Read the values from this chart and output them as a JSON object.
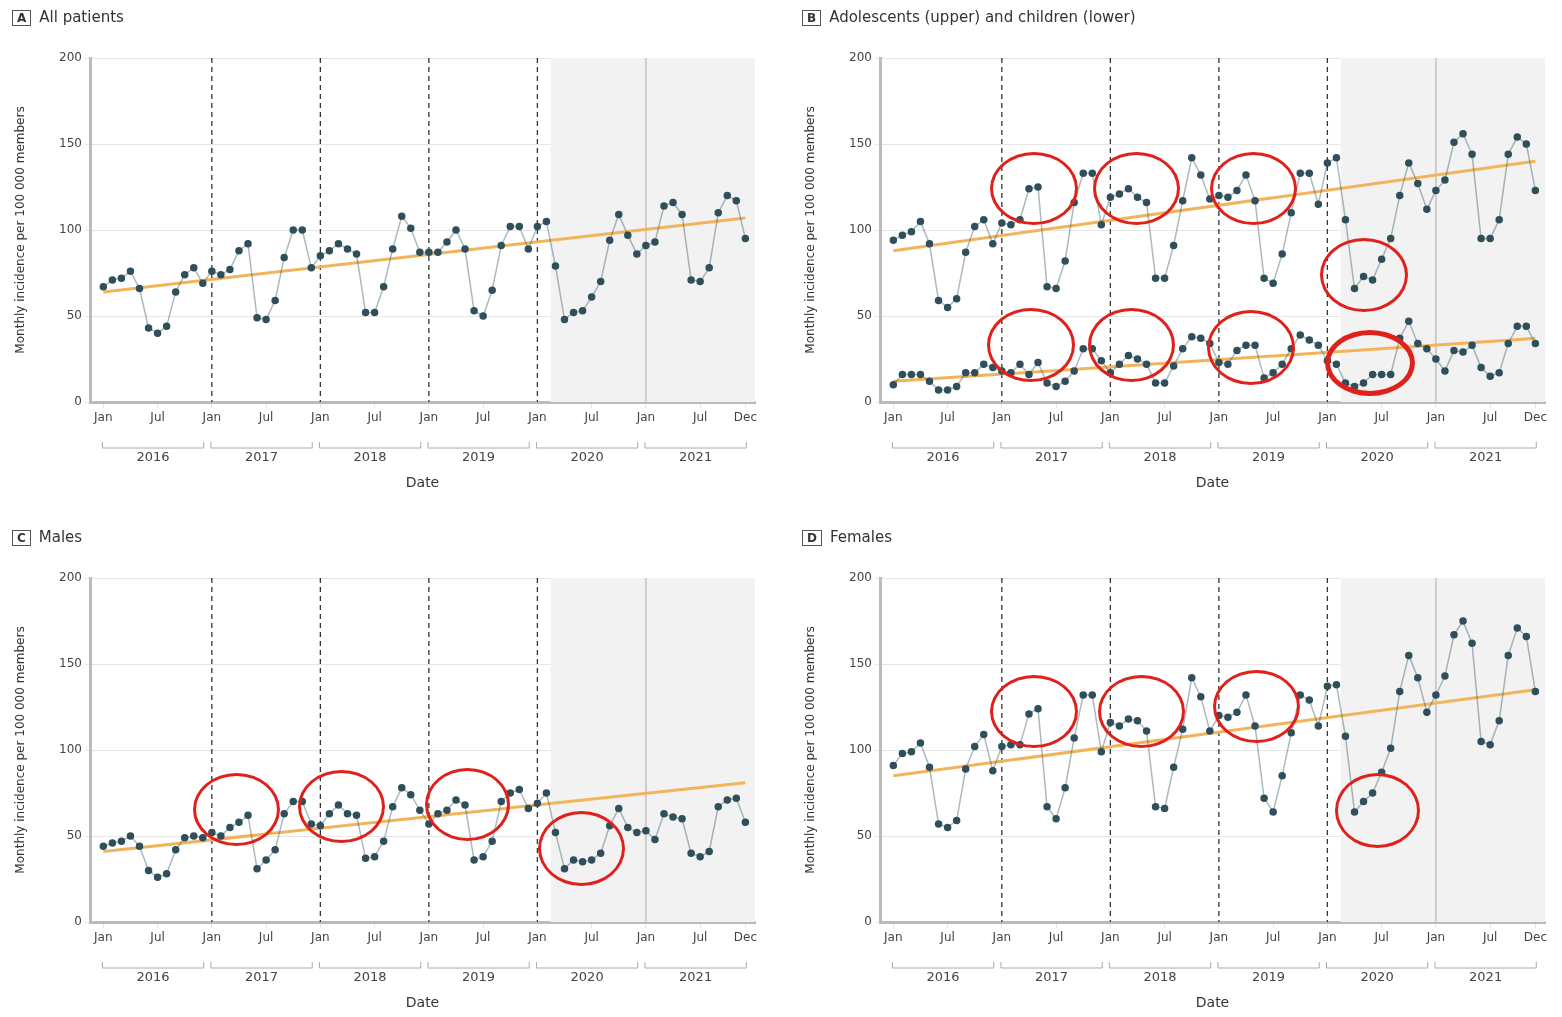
{
  "chart_data": [
    {
      "type": "line",
      "title": "A All patients",
      "xlabel": "Date",
      "ylabel": "Monthly incidence per 100 000 members",
      "marker": "circle",
      "grid": "y",
      "x": [
        "2016-01",
        "2016-02",
        "2016-03",
        "2016-04",
        "2016-05",
        "2016-06",
        "2016-07",
        "2016-08",
        "2016-09",
        "2016-10",
        "2016-11",
        "2016-12",
        "2017-01",
        "2017-02",
        "2017-03",
        "2017-04",
        "2017-05",
        "2017-06",
        "2017-07",
        "2017-08",
        "2017-09",
        "2017-10",
        "2017-11",
        "2017-12",
        "2018-01",
        "2018-02",
        "2018-03",
        "2018-04",
        "2018-05",
        "2018-06",
        "2018-07",
        "2018-08",
        "2018-09",
        "2018-10",
        "2018-11",
        "2018-12",
        "2019-01",
        "2019-02",
        "2019-03",
        "2019-04",
        "2019-05",
        "2019-06",
        "2019-07",
        "2019-08",
        "2019-09",
        "2019-10",
        "2019-11",
        "2019-12",
        "2020-01",
        "2020-02",
        "2020-03",
        "2020-04",
        "2020-05",
        "2020-06",
        "2020-07",
        "2020-08",
        "2020-09",
        "2020-10",
        "2020-11",
        "2020-12",
        "2021-01",
        "2021-02",
        "2021-03",
        "2021-04",
        "2021-05",
        "2021-06",
        "2021-07",
        "2021-08",
        "2021-09",
        "2021-10",
        "2021-11",
        "2021-12"
      ],
      "series": [
        {
          "color": "#2f4f5a",
          "values": [
            67,
            71,
            72,
            76,
            66,
            43,
            40,
            44,
            64,
            74,
            78,
            69,
            76,
            74,
            77,
            88,
            92,
            49,
            48,
            59,
            84,
            100,
            100,
            78,
            85,
            88,
            92,
            89,
            86,
            52,
            52,
            67,
            89,
            108,
            101,
            87,
            87,
            87,
            93,
            100,
            89,
            53,
            50,
            65,
            91,
            102,
            102,
            89,
            102,
            105,
            79,
            48,
            52,
            53,
            61,
            70,
            94,
            109,
            97,
            86,
            91,
            93,
            114,
            116,
            109,
            71,
            70,
            78,
            110,
            120,
            117,
            95
          ]
        },
        {
          "type": "line",
          "marker": "none",
          "color": "#f2b45a",
          "x": [
            "2016-01",
            "2021-12"
          ],
          "values": [
            64,
            107
          ]
        }
      ],
      "xlim": [
        "2015-11-17",
        "2022-01-03"
      ],
      "xticks": [
        {
          "value": "2016-01",
          "label": "Jan"
        },
        {
          "value": "2016-07",
          "label": "Jul"
        },
        {
          "value": "2017-01",
          "label": "Jan"
        },
        {
          "value": "2017-07",
          "label": "Jul"
        },
        {
          "value": "2018-01",
          "label": "Jan"
        },
        {
          "value": "2018-07",
          "label": "Jul"
        },
        {
          "value": "2019-01",
          "label": "Jan"
        },
        {
          "value": "2019-07",
          "label": "Jul"
        },
        {
          "value": "2020-01",
          "label": "Jan"
        },
        {
          "value": "2020-07",
          "label": "Jul"
        },
        {
          "value": "2021-01",
          "label": "Jan"
        },
        {
          "value": "2021-07",
          "label": "Jul"
        },
        {
          "value": "2021-12",
          "label": "Dec"
        }
      ],
      "ylim": [
        0,
        200
      ],
      "yticks": [
        0,
        50,
        100,
        150,
        200
      ],
      "ref_lines": [
        {
          "axis": "x",
          "value": "2017-01",
          "color": "#333333",
          "line_style": "dashed"
        },
        {
          "axis": "x",
          "value": "2018-01",
          "color": "#333333",
          "line_style": "dashed"
        },
        {
          "axis": "x",
          "value": "2019-01",
          "color": "#333333",
          "line_style": "dashed"
        },
        {
          "axis": "x",
          "value": "2020-01",
          "color": "#333333",
          "line_style": "dashed"
        },
        {
          "axis": "x",
          "value": "2021-01",
          "color": "#cccccc",
          "line_style": "solid"
        }
      ],
      "bands": [
        {
          "axis": "x",
          "from": "2020-02-15",
          "to": "2022-01-03",
          "color": "#f2f2f2"
        }
      ],
      "annotations": [
        "2016",
        "2017",
        "2018",
        "2019",
        "2020",
        "2021"
      ]
    },
    {
      "type": "line",
      "title": "B Adolescents (upper) and children (lower)",
      "xlabel": "Date",
      "ylabel": "Monthly incidence per 100 000 members",
      "marker": "circle",
      "grid": "y",
      "x": [
        "2016-01",
        "2016-02",
        "2016-03",
        "2016-04",
        "2016-05",
        "2016-06",
        "2016-07",
        "2016-08",
        "2016-09",
        "2016-10",
        "2016-11",
        "2016-12",
        "2017-01",
        "2017-02",
        "2017-03",
        "2017-04",
        "2017-05",
        "2017-06",
        "2017-07",
        "2017-08",
        "2017-09",
        "2017-10",
        "2017-11",
        "2017-12",
        "2018-01",
        "2018-02",
        "2018-03",
        "2018-04",
        "2018-05",
        "2018-06",
        "2018-07",
        "2018-08",
        "2018-09",
        "2018-10",
        "2018-11",
        "2018-12",
        "2019-01",
        "2019-02",
        "2019-03",
        "2019-04",
        "2019-05",
        "2019-06",
        "2019-07",
        "2019-08",
        "2019-09",
        "2019-10",
        "2019-11",
        "2019-12",
        "2020-01",
        "2020-02",
        "2020-03",
        "2020-04",
        "2020-05",
        "2020-06",
        "2020-07",
        "2020-08",
        "2020-09",
        "2020-10",
        "2020-11",
        "2020-12",
        "2021-01",
        "2021-02",
        "2021-03",
        "2021-04",
        "2021-05",
        "2021-06",
        "2021-07",
        "2021-08",
        "2021-09",
        "2021-10",
        "2021-11",
        "2021-12"
      ],
      "series": [
        {
          "color": "#2f4f5a",
          "values": [
            94,
            97,
            99,
            105,
            92,
            59,
            55,
            60,
            87,
            102,
            106,
            92,
            104,
            103,
            106,
            124,
            125,
            67,
            66,
            82,
            116,
            133,
            133,
            103,
            119,
            121,
            124,
            119,
            116,
            72,
            72,
            91,
            117,
            142,
            132,
            118,
            120,
            119,
            123,
            132,
            117,
            72,
            69,
            86,
            110,
            133,
            133,
            115,
            139,
            142,
            106,
            66,
            73,
            71,
            83,
            95,
            120,
            139,
            127,
            112,
            123,
            129,
            151,
            156,
            144,
            95,
            95,
            106,
            144,
            154,
            150,
            123
          ]
        },
        {
          "color": "#2f4f5a",
          "values": [
            10,
            16,
            16,
            16,
            12,
            7,
            7,
            9,
            17,
            17,
            22,
            20,
            18,
            17,
            22,
            16,
            23,
            11,
            9,
            12,
            18,
            31,
            31,
            24,
            17,
            22,
            27,
            25,
            22,
            11,
            11,
            21,
            31,
            38,
            37,
            34,
            23,
            22,
            30,
            33,
            33,
            14,
            17,
            22,
            31,
            39,
            36,
            33,
            24,
            22,
            11,
            9,
            11,
            16,
            16,
            16,
            37,
            47,
            34,
            31,
            25,
            18,
            30,
            29,
            33,
            20,
            15,
            17,
            34,
            44,
            44,
            34
          ]
        },
        {
          "type": "line",
          "marker": "none",
          "color": "#f2b45a",
          "x": [
            "2016-01",
            "2021-12"
          ],
          "values": [
            88,
            140
          ]
        },
        {
          "type": "line",
          "marker": "none",
          "color": "#f2b45a",
          "x": [
            "2016-01",
            "2021-12"
          ],
          "values": [
            12,
            37
          ]
        }
      ],
      "xlim": [
        "2015-11-17",
        "2022-01-03"
      ],
      "xticks": [
        {
          "value": "2016-01",
          "label": "Jan"
        },
        {
          "value": "2016-07",
          "label": "Jul"
        },
        {
          "value": "2017-01",
          "label": "Jan"
        },
        {
          "value": "2017-07",
          "label": "Jul"
        },
        {
          "value": "2018-01",
          "label": "Jan"
        },
        {
          "value": "2018-07",
          "label": "Jul"
        },
        {
          "value": "2019-01",
          "label": "Jan"
        },
        {
          "value": "2019-07",
          "label": "Jul"
        },
        {
          "value": "2020-01",
          "label": "Jan"
        },
        {
          "value": "2020-07",
          "label": "Jul"
        },
        {
          "value": "2021-01",
          "label": "Jan"
        },
        {
          "value": "2021-07",
          "label": "Jul"
        },
        {
          "value": "2021-12",
          "label": "Dec"
        }
      ],
      "ylim": [
        0,
        200
      ],
      "yticks": [
        0,
        50,
        100,
        150,
        200
      ],
      "ref_lines": [
        {
          "axis": "x",
          "value": "2017-01",
          "color": "#333333",
          "line_style": "dashed"
        },
        {
          "axis": "x",
          "value": "2018-01",
          "color": "#333333",
          "line_style": "dashed"
        },
        {
          "axis": "x",
          "value": "2019-01",
          "color": "#333333",
          "line_style": "dashed"
        },
        {
          "axis": "x",
          "value": "2020-01",
          "color": "#333333",
          "line_style": "dashed"
        },
        {
          "axis": "x",
          "value": "2021-01",
          "color": "#cccccc",
          "line_style": "solid"
        }
      ],
      "bands": [
        {
          "axis": "x",
          "from": "2020-02-15",
          "to": "2022-01-03",
          "color": "#f2f2f2"
        }
      ],
      "annotations": [
        "2016",
        "2017",
        "2018",
        "2019",
        "2020",
        "2021"
      ]
    },
    {
      "type": "line",
      "title": "C Males",
      "xlabel": "Date",
      "ylabel": "Monthly incidence per 100 000 members",
      "marker": "circle",
      "grid": "y",
      "x": [
        "2016-01",
        "2016-02",
        "2016-03",
        "2016-04",
        "2016-05",
        "2016-06",
        "2016-07",
        "2016-08",
        "2016-09",
        "2016-10",
        "2016-11",
        "2016-12",
        "2017-01",
        "2017-02",
        "2017-03",
        "2017-04",
        "2017-05",
        "2017-06",
        "2017-07",
        "2017-08",
        "2017-09",
        "2017-10",
        "2017-11",
        "2017-12",
        "2018-01",
        "2018-02",
        "2018-03",
        "2018-04",
        "2018-05",
        "2018-06",
        "2018-07",
        "2018-08",
        "2018-09",
        "2018-10",
        "2018-11",
        "2018-12",
        "2019-01",
        "2019-02",
        "2019-03",
        "2019-04",
        "2019-05",
        "2019-06",
        "2019-07",
        "2019-08",
        "2019-09",
        "2019-10",
        "2019-11",
        "2019-12",
        "2020-01",
        "2020-02",
        "2020-03",
        "2020-04",
        "2020-05",
        "2020-06",
        "2020-07",
        "2020-08",
        "2020-09",
        "2020-10",
        "2020-11",
        "2020-12",
        "2021-01",
        "2021-02",
        "2021-03",
        "2021-04",
        "2021-05",
        "2021-06",
        "2021-07",
        "2021-08",
        "2021-09",
        "2021-10",
        "2021-11",
        "2021-12"
      ],
      "series": [
        {
          "color": "#2f4f5a",
          "values": [
            44,
            46,
            47,
            50,
            44,
            30,
            26,
            28,
            42,
            49,
            50,
            49,
            52,
            50,
            55,
            58,
            62,
            31,
            36,
            42,
            63,
            70,
            70,
            57,
            56,
            63,
            68,
            63,
            62,
            37,
            38,
            47,
            67,
            78,
            74,
            65,
            57,
            63,
            65,
            71,
            68,
            36,
            38,
            47,
            70,
            75,
            77,
            66,
            69,
            75,
            52,
            31,
            36,
            35,
            36,
            40,
            56,
            66,
            55,
            52,
            53,
            48,
            63,
            61,
            60,
            40,
            38,
            41,
            67,
            71,
            72,
            58
          ]
        },
        {
          "type": "line",
          "marker": "none",
          "color": "#f2b45a",
          "x": [
            "2016-01",
            "2021-12"
          ],
          "values": [
            41,
            81
          ]
        }
      ],
      "xlim": [
        "2015-11-17",
        "2022-01-03"
      ],
      "xticks": [
        {
          "value": "2016-01",
          "label": "Jan"
        },
        {
          "value": "2016-07",
          "label": "Jul"
        },
        {
          "value": "2017-01",
          "label": "Jan"
        },
        {
          "value": "2017-07",
          "label": "Jul"
        },
        {
          "value": "2018-01",
          "label": "Jan"
        },
        {
          "value": "2018-07",
          "label": "Jul"
        },
        {
          "value": "2019-01",
          "label": "Jan"
        },
        {
          "value": "2019-07",
          "label": "Jul"
        },
        {
          "value": "2020-01",
          "label": "Jan"
        },
        {
          "value": "2020-07",
          "label": "Jul"
        },
        {
          "value": "2021-01",
          "label": "Jan"
        },
        {
          "value": "2021-07",
          "label": "Jul"
        },
        {
          "value": "2021-12",
          "label": "Dec"
        }
      ],
      "ylim": [
        0,
        200
      ],
      "yticks": [
        0,
        50,
        100,
        150,
        200
      ],
      "ref_lines": [
        {
          "axis": "x",
          "value": "2017-01",
          "color": "#333333",
          "line_style": "dashed"
        },
        {
          "axis": "x",
          "value": "2018-01",
          "color": "#333333",
          "line_style": "dashed"
        },
        {
          "axis": "x",
          "value": "2019-01",
          "color": "#333333",
          "line_style": "dashed"
        },
        {
          "axis": "x",
          "value": "2020-01",
          "color": "#333333",
          "line_style": "dashed"
        },
        {
          "axis": "x",
          "value": "2021-01",
          "color": "#cccccc",
          "line_style": "solid"
        }
      ],
      "bands": [
        {
          "axis": "x",
          "from": "2020-02-15",
          "to": "2022-01-03",
          "color": "#f2f2f2"
        }
      ],
      "annotations": [
        "2016",
        "2017",
        "2018",
        "2019",
        "2020",
        "2021"
      ]
    },
    {
      "type": "line",
      "title": "D Females",
      "xlabel": "Date",
      "ylabel": "Monthly incidence per 100 000 members",
      "marker": "circle",
      "grid": "y",
      "x": [
        "2016-01",
        "2016-02",
        "2016-03",
        "2016-04",
        "2016-05",
        "2016-06",
        "2016-07",
        "2016-08",
        "2016-09",
        "2016-10",
        "2016-11",
        "2016-12",
        "2017-01",
        "2017-02",
        "2017-03",
        "2017-04",
        "2017-05",
        "2017-06",
        "2017-07",
        "2017-08",
        "2017-09",
        "2017-10",
        "2017-11",
        "2017-12",
        "2018-01",
        "2018-02",
        "2018-03",
        "2018-04",
        "2018-05",
        "2018-06",
        "2018-07",
        "2018-08",
        "2018-09",
        "2018-10",
        "2018-11",
        "2018-12",
        "2019-01",
        "2019-02",
        "2019-03",
        "2019-04",
        "2019-05",
        "2019-06",
        "2019-07",
        "2019-08",
        "2019-09",
        "2019-10",
        "2019-11",
        "2019-12",
        "2020-01",
        "2020-02",
        "2020-03",
        "2020-04",
        "2020-05",
        "2020-06",
        "2020-07",
        "2020-08",
        "2020-09",
        "2020-10",
        "2020-11",
        "2020-12",
        "2021-01",
        "2021-02",
        "2021-03",
        "2021-04",
        "2021-05",
        "2021-06",
        "2021-07",
        "2021-08",
        "2021-09",
        "2021-10",
        "2021-11",
        "2021-12"
      ],
      "series": [
        {
          "color": "#2f4f5a",
          "values": [
            91,
            98,
            99,
            104,
            90,
            57,
            55,
            59,
            89,
            102,
            109,
            88,
            102,
            103,
            103,
            121,
            124,
            67,
            60,
            78,
            107,
            132,
            132,
            99,
            116,
            114,
            118,
            117,
            111,
            67,
            66,
            90,
            112,
            142,
            131,
            111,
            120,
            119,
            122,
            132,
            114,
            72,
            64,
            85,
            110,
            132,
            129,
            114,
            137,
            138,
            108,
            64,
            70,
            75,
            87,
            101,
            134,
            155,
            142,
            122,
            132,
            143,
            167,
            175,
            162,
            105,
            103,
            117,
            155,
            171,
            166,
            134
          ]
        },
        {
          "type": "line",
          "marker": "none",
          "color": "#f2b45a",
          "x": [
            "2016-01",
            "2021-12"
          ],
          "values": [
            85,
            135
          ]
        }
      ],
      "xlim": [
        "2015-11-17",
        "2022-01-03"
      ],
      "xticks": [
        {
          "value": "2016-01",
          "label": "Jan"
        },
        {
          "value": "2016-07",
          "label": "Jul"
        },
        {
          "value": "2017-01",
          "label": "Jan"
        },
        {
          "value": "2017-07",
          "label": "Jul"
        },
        {
          "value": "2018-01",
          "label": "Jan"
        },
        {
          "value": "2018-07",
          "label": "Jul"
        },
        {
          "value": "2019-01",
          "label": "Jan"
        },
        {
          "value": "2019-07",
          "label": "Jul"
        },
        {
          "value": "2020-01",
          "label": "Jan"
        },
        {
          "value": "2020-07",
          "label": "Jul"
        },
        {
          "value": "2021-01",
          "label": "Jan"
        },
        {
          "value": "2021-07",
          "label": "Jul"
        },
        {
          "value": "2021-12",
          "label": "Dec"
        }
      ],
      "ylim": [
        0,
        200
      ],
      "yticks": [
        0,
        50,
        100,
        150,
        200
      ],
      "ref_lines": [
        {
          "axis": "x",
          "value": "2017-01",
          "color": "#333333",
          "line_style": "dashed"
        },
        {
          "axis": "x",
          "value": "2018-01",
          "color": "#333333",
          "line_style": "dashed"
        },
        {
          "axis": "x",
          "value": "2019-01",
          "color": "#333333",
          "line_style": "dashed"
        },
        {
          "axis": "x",
          "value": "2020-01",
          "color": "#333333",
          "line_style": "dashed"
        },
        {
          "axis": "x",
          "value": "2021-01",
          "color": "#cccccc",
          "line_style": "solid"
        }
      ],
      "bands": [
        {
          "axis": "x",
          "from": "2020-02-15",
          "to": "2022-01-03",
          "color": "#f2f2f2"
        }
      ],
      "annotations": [
        "2016",
        "2017",
        "2018",
        "2019",
        "2020",
        "2021"
      ]
    }
  ]
}
